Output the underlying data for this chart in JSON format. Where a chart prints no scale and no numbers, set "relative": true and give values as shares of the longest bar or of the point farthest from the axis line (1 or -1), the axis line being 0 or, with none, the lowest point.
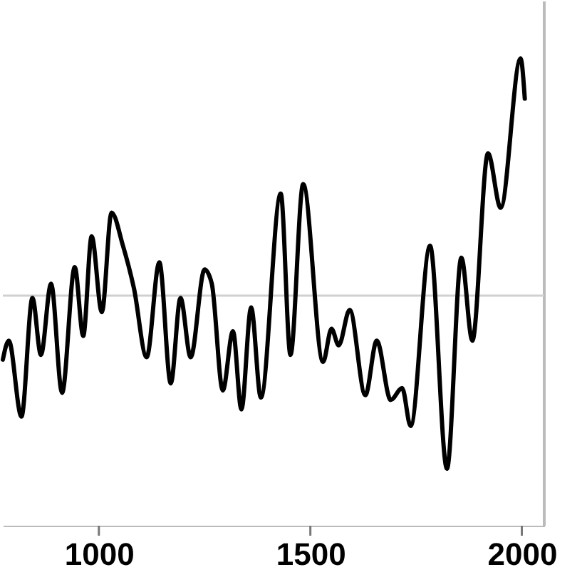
{
  "chart_data": {
    "type": "line",
    "relative": true,
    "line_style": "solid",
    "marker": "none",
    "grid": false,
    "x": [
      773,
      787,
      817,
      843,
      863,
      887,
      913,
      943,
      963,
      983,
      1007,
      1030,
      1057,
      1083,
      1113,
      1143,
      1170,
      1193,
      1217,
      1250,
      1267,
      1293,
      1317,
      1337,
      1360,
      1383,
      1430,
      1453,
      1483,
      1530,
      1550,
      1567,
      1593,
      1630,
      1657,
      1690,
      1717,
      1737,
      1783,
      1823,
      1857,
      1883,
      1920,
      1950,
      1997,
      2007
    ],
    "series": [
      {
        "color": "#000000",
        "values": [
          -0.27,
          -0.19,
          -0.51,
          -0.01,
          -0.25,
          0.05,
          -0.41,
          0.12,
          -0.17,
          0.25,
          -0.07,
          0.35,
          0.21,
          0.03,
          -0.26,
          0.14,
          -0.37,
          -0.01,
          -0.26,
          0.11,
          0.05,
          -0.4,
          -0.15,
          -0.48,
          -0.05,
          -0.43,
          0.43,
          -0.25,
          0.47,
          -0.28,
          -0.14,
          -0.21,
          -0.06,
          -0.42,
          -0.19,
          -0.44,
          -0.39,
          -0.55,
          0.21,
          -0.73,
          0.16,
          -0.19,
          0.6,
          0.37,
          1.0,
          0.83
        ]
      }
    ],
    "xlim": [
      773,
      2053
    ],
    "xticks": [
      1000,
      1500,
      2000
    ],
    "ref_lines": [
      {
        "axis": "y",
        "value": 0,
        "color": "#d0d0d0"
      }
    ]
  }
}
